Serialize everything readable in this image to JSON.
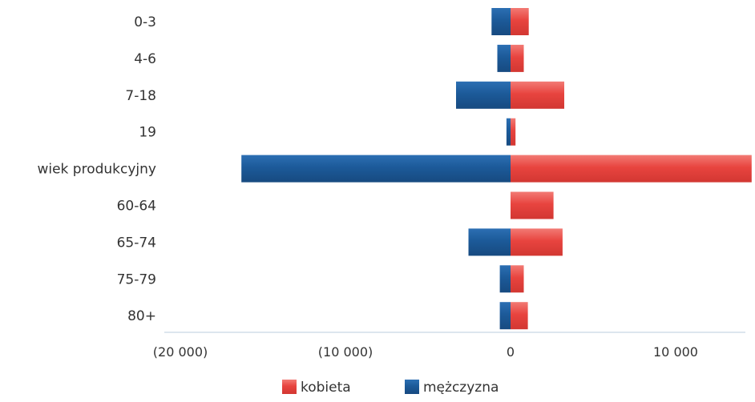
{
  "chart_data": {
    "type": "bar",
    "orientation": "horizontal",
    "stacked": "diverging",
    "categories": [
      "0-3",
      "4-6",
      "7-18",
      "19",
      "wiek produkcyjny",
      "60-64",
      "65-74",
      "75-79",
      "80+"
    ],
    "series": [
      {
        "name": "kobieta",
        "color": "#e8443f",
        "values": [
          1100,
          800,
          3250,
          300,
          14600,
          2600,
          3150,
          800,
          1050
        ]
      },
      {
        "name": "mężczyzna",
        "color": "#1c5a99",
        "values": [
          -1150,
          -800,
          -3300,
          -250,
          -16300,
          0,
          -2550,
          -650,
          -650
        ]
      }
    ],
    "x_ticks": [
      {
        "value": -20000,
        "label": "(20 000)"
      },
      {
        "value": -10000,
        "label": "(10 000)"
      },
      {
        "value": 0,
        "label": "0"
      },
      {
        "value": 10000,
        "label": "10 000"
      }
    ],
    "xlim": [
      -20000,
      14600
    ],
    "grid": false,
    "legend_position": "bottom"
  }
}
